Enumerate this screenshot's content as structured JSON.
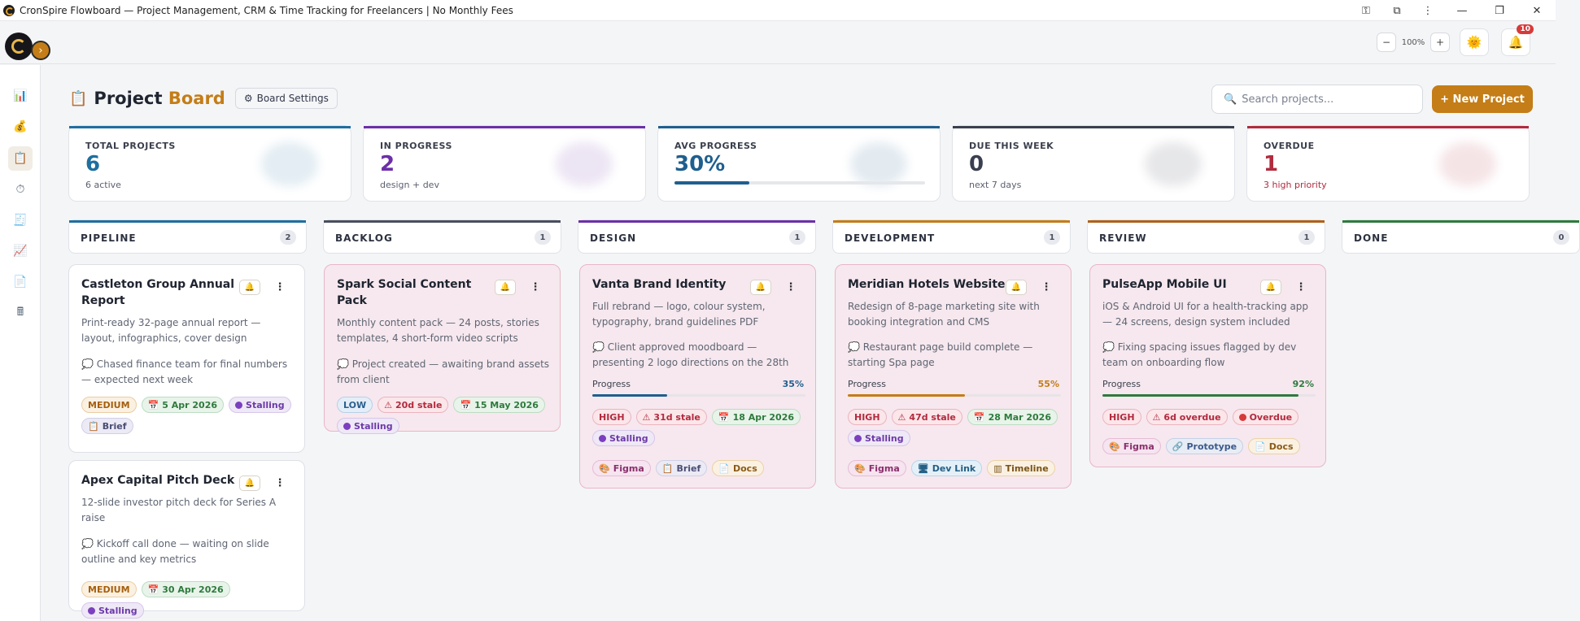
{
  "window": {
    "title": "CronSpire Flowboard — Project Management, CRM & Time Tracking for Freelancers | No Monthly Fees"
  },
  "topbar": {
    "zoom_out": "−",
    "zoom_value": "100%",
    "zoom_in": "+",
    "notifications_count": "10"
  },
  "sidebar": {
    "items": [
      {
        "icon": "chart-icon",
        "glyph": "📊"
      },
      {
        "icon": "money-bag-icon",
        "glyph": "💰"
      },
      {
        "icon": "clipboard-icon",
        "glyph": "📋",
        "active": true
      },
      {
        "icon": "stopwatch-icon",
        "glyph": "⏱"
      },
      {
        "icon": "invoice-icon",
        "glyph": "🧾"
      },
      {
        "icon": "trend-icon",
        "glyph": "📈"
      },
      {
        "icon": "document-icon",
        "glyph": "📄"
      },
      {
        "icon": "calculator-icon",
        "glyph": "🖩"
      }
    ]
  },
  "page": {
    "title_main": "Project",
    "title_accent": "Board",
    "board_settings": "Board Settings",
    "search_placeholder": "Search projects...",
    "new_project": "+ New Project"
  },
  "stats": [
    {
      "label": "TOTAL PROJECTS",
      "value": "6",
      "sub": "6 active",
      "color": "#1f6f9f"
    },
    {
      "label": "IN PROGRESS",
      "value": "2",
      "sub": "design + dev",
      "color": "#6c2fa8"
    },
    {
      "label": "AVG PROGRESS",
      "value": "30%",
      "progress": 0.3,
      "color": "#1f5f8f"
    },
    {
      "label": "DUE THIS WEEK",
      "value": "0",
      "sub": "next 7 days",
      "color": "#3a3f50"
    },
    {
      "label": "OVERDUE",
      "value": "1",
      "sub": "3 high priority",
      "color": "#b12b3e"
    }
  ],
  "columns": [
    {
      "title": "PIPELINE",
      "count": "2",
      "color": "#1f6f9f"
    },
    {
      "title": "BACKLOG",
      "count": "1",
      "color": "#4a4f5e"
    },
    {
      "title": "DESIGN",
      "count": "1",
      "color": "#6c2fa8"
    },
    {
      "title": "DEVELOPMENT",
      "count": "1",
      "color": "#c47d17"
    },
    {
      "title": "REVIEW",
      "count": "1",
      "color": "#b0611a"
    },
    {
      "title": "DONE",
      "count": "0",
      "color": "#2f7a3e"
    }
  ],
  "cards": {
    "castleton": {
      "name": "Castleton Group Annual Report",
      "desc": "Print-ready 32-page annual report — layout, infographics, cover design",
      "note": "💭 Chased finance team for final numbers — expected next week",
      "priority": "MEDIUM",
      "date": "5 Apr 2026",
      "status": "Stalling",
      "link1": "Brief"
    },
    "apex": {
      "name": "Apex Capital Pitch Deck",
      "desc": "12-slide investor pitch deck for Series A raise",
      "note": "💭 Kickoff call done — waiting on slide outline and key metrics",
      "priority": "MEDIUM",
      "date": "30 Apr 2026",
      "status": "Stalling"
    },
    "spark": {
      "name": "Spark Social Content Pack",
      "desc": "Monthly content pack — 24 posts, stories templates, 4 short-form video scripts",
      "note": "💭 Project created — awaiting brand assets from client",
      "priority": "LOW",
      "stale": "20d stale",
      "date": "15 May 2026",
      "status": "Stalling"
    },
    "vanta": {
      "name": "Vanta Brand Identity",
      "desc": "Full rebrand — logo, colour system, typography, brand guidelines PDF",
      "note": "💭 Client approved moodboard — presenting 2 logo directions on the 28th",
      "progress_label": "Progress",
      "progress_text": "35%",
      "progress": 0.35,
      "priority": "HIGH",
      "stale": "31d stale",
      "date": "18 Apr 2026",
      "status": "Stalling",
      "link1": "Figma",
      "link2": "Brief",
      "link3": "Docs"
    },
    "meridian": {
      "name": "Meridian Hotels Website",
      "desc": "Redesign of 8-page marketing site with booking integration and CMS",
      "note": "💭 Restaurant page build complete — starting Spa page",
      "progress_label": "Progress",
      "progress_text": "55%",
      "progress": 0.55,
      "priority": "HIGH",
      "stale": "47d stale",
      "date": "28 Mar 2026",
      "status": "Stalling",
      "link1": "Figma",
      "link2": "Dev Link",
      "link3": "Timeline"
    },
    "pulse": {
      "name": "PulseApp Mobile UI",
      "desc": "iOS & Android UI for a health-tracking app — 24 screens, design system included",
      "note": "💭 Fixing spacing issues flagged by dev team on onboarding flow",
      "progress_label": "Progress",
      "progress_text": "92%",
      "progress": 0.92,
      "priority": "HIGH",
      "overdue_days": "6d overdue",
      "overdue": "Overdue",
      "link1": "Figma",
      "link2": "Prototype",
      "link3": "Docs"
    }
  }
}
